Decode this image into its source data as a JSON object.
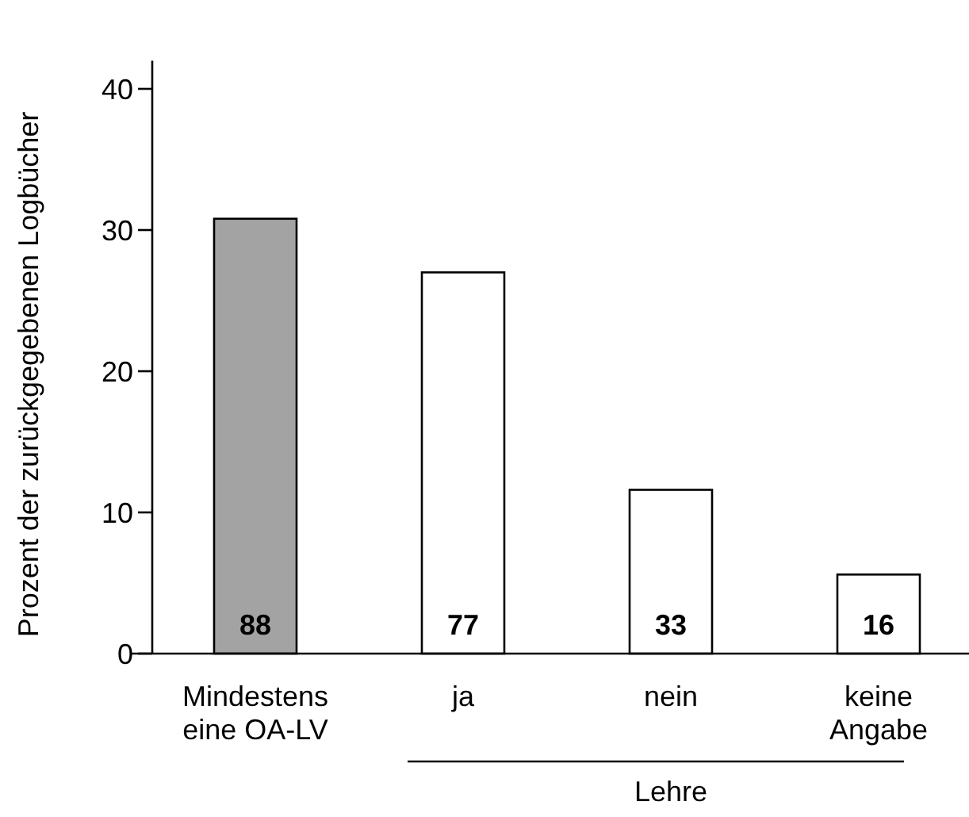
{
  "chart_data": {
    "type": "bar",
    "ylabel": "Prozent der zurückgegebenen Logbücher",
    "categories": [
      "Mindestens eine OA-LV",
      "ja",
      "nein",
      "keine Angabe"
    ],
    "values": [
      30.8,
      27.0,
      11.6,
      5.6
    ],
    "colors": [
      "#a3a3a3",
      "#ffffff",
      "#ffffff",
      "#ffffff"
    ],
    "ylim": [
      0,
      42
    ],
    "yticks": [
      0,
      10,
      20,
      30,
      40
    ],
    "annotations": [
      "88",
      "77",
      "33",
      "16",
      "Lehre"
    ]
  }
}
